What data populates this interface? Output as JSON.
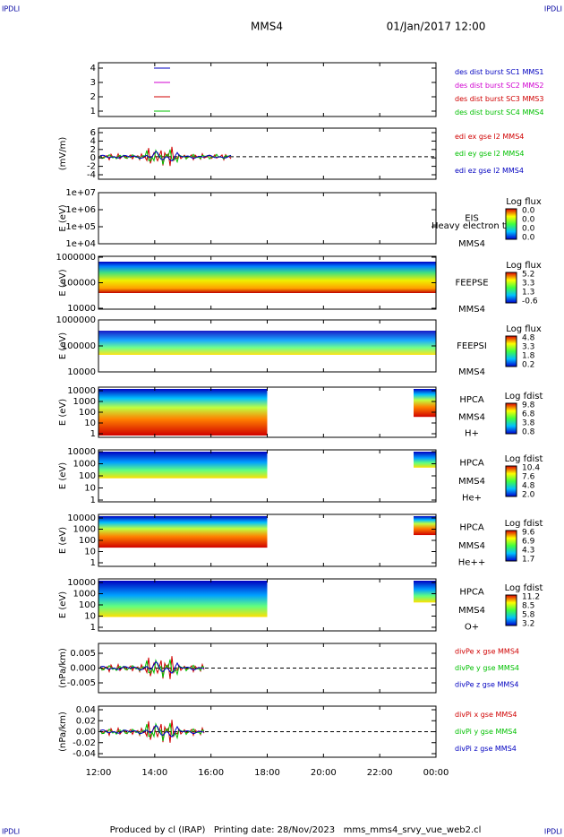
{
  "header": {
    "left": "IPDLI",
    "title": "MMS4",
    "date": "01/Jan/2017 12:00",
    "right": "IPDLI"
  },
  "panels": [
    {
      "yticks": [
        4,
        3,
        2,
        1
      ],
      "legend": [
        {
          "text": "des dist burst SC1 MMS1",
          "color": "#0000c0"
        },
        {
          "text": "des dist burst SC2 MMS2",
          "color": "#d000d0"
        },
        {
          "text": "des dist burst SC3 MMS3",
          "color": "#d00000"
        },
        {
          "text": "des dist burst SC4 MMS4",
          "color": "#00c000"
        }
      ]
    },
    {
      "ylabel": "(mV/m)",
      "yticks": [
        6,
        4,
        2,
        0,
        -2,
        -4
      ],
      "legend": [
        {
          "text": "edi ex gse l2 MMS4",
          "color": "#d00000"
        },
        {
          "text": "edi ey gse l2 MMS4",
          "color": "#00c000"
        },
        {
          "text": "edi ez gse l2 MMS4",
          "color": "#0000c0"
        }
      ]
    },
    {
      "ylabel": "E (eV)",
      "yticks": [
        "1e+07",
        "1e+06",
        "1e+05",
        "1e+04"
      ],
      "right": [
        "EIS",
        "MMS4"
      ],
      "note": "Heavy electron to",
      "colorbar": {
        "title": "Log flux",
        "ticks": [
          "0.0",
          "0.0",
          "0.0",
          "0.0"
        ]
      }
    },
    {
      "ylabel": "E (eV)",
      "yticks": [
        1000000,
        100000,
        10000
      ],
      "right": [
        "FEEPSE",
        "MMS4"
      ],
      "colorbar": {
        "title": "Log flux",
        "ticks": [
          "5.2",
          "3.3",
          "1.3",
          "-0.6"
        ]
      }
    },
    {
      "ylabel": "E (eV)",
      "yticks": [
        1000000,
        100000,
        10000
      ],
      "right": [
        "FEEPSI",
        "MMS4"
      ],
      "colorbar": {
        "title": "Log flux",
        "ticks": [
          "4.8",
          "3.3",
          "1.8",
          "0.2"
        ]
      }
    },
    {
      "ylabel": "E (eV)",
      "yticks": [
        10000,
        1000,
        100,
        10,
        1
      ],
      "right": [
        "HPCA",
        "MMS4",
        "H+"
      ],
      "colorbar": {
        "title": "Log fdist",
        "ticks": [
          "9.8",
          "6.8",
          "3.8",
          "0.8"
        ]
      }
    },
    {
      "ylabel": "E (eV)",
      "yticks": [
        10000,
        1000,
        100,
        10,
        1
      ],
      "right": [
        "HPCA",
        "MMS4",
        "He+"
      ],
      "colorbar": {
        "title": "Log fdist",
        "ticks": [
          "10.4",
          "7.6",
          "4.8",
          "2.0"
        ]
      }
    },
    {
      "ylabel": "E (eV)",
      "yticks": [
        10000,
        1000,
        100,
        10,
        1
      ],
      "right": [
        "HPCA",
        "MMS4",
        "He++"
      ],
      "colorbar": {
        "title": "Log fdist",
        "ticks": [
          "9.6",
          "6.9",
          "4.3",
          "1.7"
        ]
      }
    },
    {
      "ylabel": "E (eV)",
      "yticks": [
        10000,
        1000,
        100,
        10,
        1
      ],
      "right": [
        "HPCA",
        "MMS4",
        "O+"
      ],
      "colorbar": {
        "title": "Log fdist",
        "ticks": [
          "11.2",
          "8.5",
          "5.8",
          "3.2"
        ]
      }
    },
    {
      "ylabel": "(nPa/km)",
      "yticks": [
        0.005,
        "0.000",
        -0.005
      ],
      "legend": [
        {
          "text": "divPe x gse MMS4",
          "color": "#d00000"
        },
        {
          "text": "divPe y gse MMS4",
          "color": "#00c000"
        },
        {
          "text": "divPe z gse MMS4",
          "color": "#0000c0"
        }
      ]
    },
    {
      "ylabel": "(nPa/km)",
      "yticks": [
        0.04,
        0.02,
        "0.00",
        -0.02,
        -0.04
      ],
      "legend": [
        {
          "text": "divPi x gse MMS4",
          "color": "#d00000"
        },
        {
          "text": "divPi y gse MMS4",
          "color": "#00c000"
        },
        {
          "text": "divPi z gse MMS4",
          "color": "#0000c0"
        }
      ]
    }
  ],
  "xticks": [
    "12:00",
    "14:00",
    "16:00",
    "18:00",
    "20:00",
    "22:00",
    "00:00"
  ],
  "footer": "Produced by cl (IRAP)   Printing date: 28/Nov/2023   mms_mms4_srvy_vue_web2.cl"
}
